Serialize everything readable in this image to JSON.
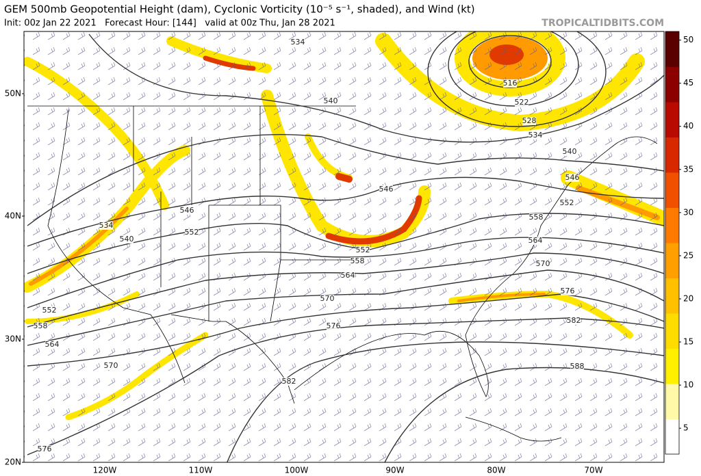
{
  "header": {
    "title": "GEM 500mb Geopotential Height (dam), Cyclonic Vorticity (10⁻⁵ s⁻¹, shaded), and Wind (kt)",
    "subtitle": "Init: 00z Jan 22 2021   Forecast Hour: [144]   valid at 00z Thu, Jan 28 2021",
    "watermark": "TROPICALTIDBITS.COM"
  },
  "map": {
    "lat_labels": [
      "50N",
      "40N",
      "30N",
      "20N"
    ],
    "lon_labels": [
      "120W",
      "110W",
      "100W",
      "90W",
      "80W",
      "70W"
    ],
    "contour_labels": [
      534,
      540,
      516,
      522,
      528,
      534,
      540,
      546,
      552,
      546,
      552,
      558,
      564,
      570,
      576,
      582,
      588,
      582,
      576,
      570,
      564,
      558,
      546,
      552,
      540,
      534,
      552,
      558,
      564,
      570,
      576
    ]
  },
  "colorbar": {
    "clim": [
      2,
      51
    ],
    "ticks": [
      5,
      10,
      15,
      20,
      25,
      30,
      35,
      40,
      45,
      50
    ],
    "colormap": [
      "#ffffff",
      "#fff9a8",
      "#fff000",
      "#ffdc00",
      "#ffc000",
      "#ffa000",
      "#ff7a00",
      "#f05000",
      "#d82800",
      "#b80a00",
      "#8c0000",
      "#5a0000"
    ]
  }
}
